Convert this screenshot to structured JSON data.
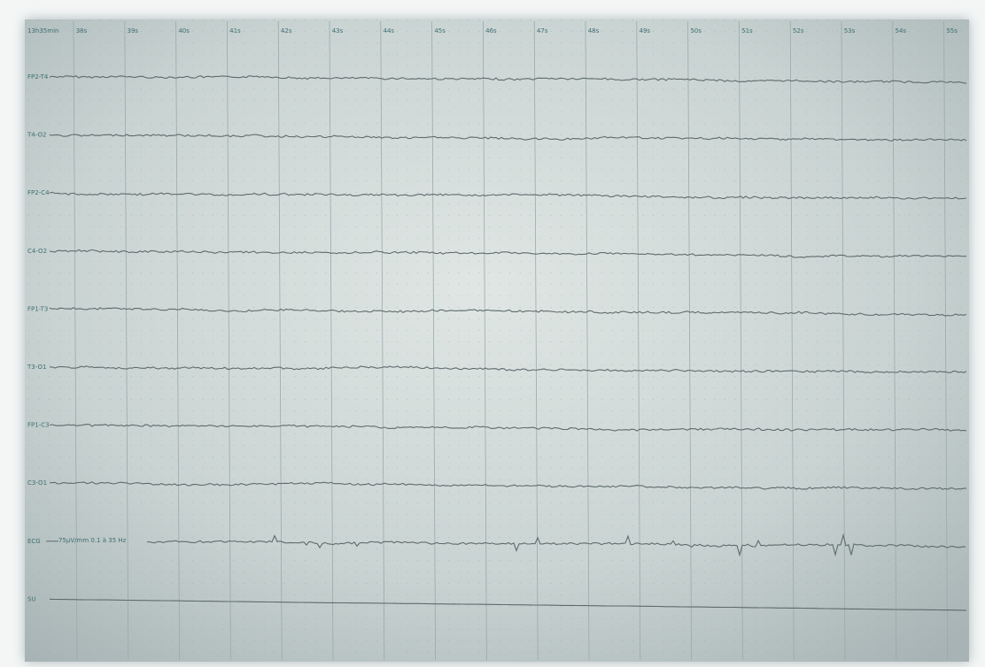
{
  "header": {
    "start_time": "13h35min",
    "seconds": [
      "38s",
      "39s",
      "40s",
      "41s",
      "42s",
      "43s",
      "44s",
      "45s",
      "46s",
      "47s",
      "48s",
      "49s",
      "50s",
      "51s",
      "52s",
      "53s",
      "54s",
      "55s"
    ]
  },
  "channels": [
    {
      "label": "FP2-T4"
    },
    {
      "label": "T4-O2"
    },
    {
      "label": "FP2-C4"
    },
    {
      "label": "C4-O2"
    },
    {
      "label": "FP1-T3"
    },
    {
      "label": "T3-O1"
    },
    {
      "label": "FP1-C3"
    },
    {
      "label": "C3-O1"
    },
    {
      "label": "ECG"
    },
    {
      "label": "SU"
    }
  ],
  "ecg_setting": "75µV/mm 0.1 à 35 Hz"
}
